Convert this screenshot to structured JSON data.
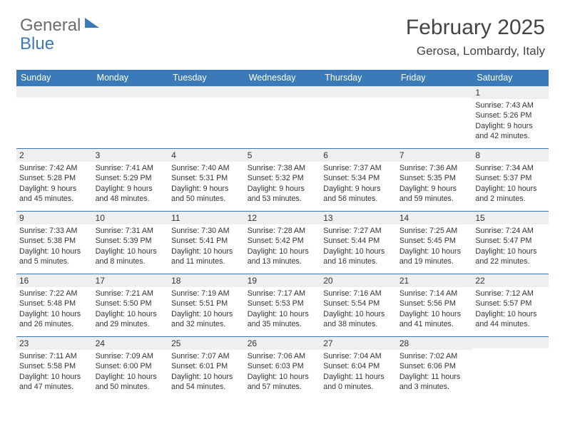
{
  "logo": {
    "part1": "General",
    "part2": "Blue"
  },
  "title": "February 2025",
  "location": "Gerosa, Lombardy, Italy",
  "colors": {
    "header_bg": "#3a7ab8",
    "header_text": "#ffffff",
    "daynum_bg": "#efefef",
    "text": "#333333",
    "border": "#3a7ab8",
    "page_bg": "#ffffff"
  },
  "dayNames": [
    "Sunday",
    "Monday",
    "Tuesday",
    "Wednesday",
    "Thursday",
    "Friday",
    "Saturday"
  ],
  "weeks": [
    [
      {
        "n": "",
        "lines": []
      },
      {
        "n": "",
        "lines": []
      },
      {
        "n": "",
        "lines": []
      },
      {
        "n": "",
        "lines": []
      },
      {
        "n": "",
        "lines": []
      },
      {
        "n": "",
        "lines": []
      },
      {
        "n": "1",
        "lines": [
          "Sunrise: 7:43 AM",
          "Sunset: 5:26 PM",
          "Daylight: 9 hours",
          "and 42 minutes."
        ]
      }
    ],
    [
      {
        "n": "2",
        "lines": [
          "Sunrise: 7:42 AM",
          "Sunset: 5:28 PM",
          "Daylight: 9 hours",
          "and 45 minutes."
        ]
      },
      {
        "n": "3",
        "lines": [
          "Sunrise: 7:41 AM",
          "Sunset: 5:29 PM",
          "Daylight: 9 hours",
          "and 48 minutes."
        ]
      },
      {
        "n": "4",
        "lines": [
          "Sunrise: 7:40 AM",
          "Sunset: 5:31 PM",
          "Daylight: 9 hours",
          "and 50 minutes."
        ]
      },
      {
        "n": "5",
        "lines": [
          "Sunrise: 7:38 AM",
          "Sunset: 5:32 PM",
          "Daylight: 9 hours",
          "and 53 minutes."
        ]
      },
      {
        "n": "6",
        "lines": [
          "Sunrise: 7:37 AM",
          "Sunset: 5:34 PM",
          "Daylight: 9 hours",
          "and 56 minutes."
        ]
      },
      {
        "n": "7",
        "lines": [
          "Sunrise: 7:36 AM",
          "Sunset: 5:35 PM",
          "Daylight: 9 hours",
          "and 59 minutes."
        ]
      },
      {
        "n": "8",
        "lines": [
          "Sunrise: 7:34 AM",
          "Sunset: 5:37 PM",
          "Daylight: 10 hours",
          "and 2 minutes."
        ]
      }
    ],
    [
      {
        "n": "9",
        "lines": [
          "Sunrise: 7:33 AM",
          "Sunset: 5:38 PM",
          "Daylight: 10 hours",
          "and 5 minutes."
        ]
      },
      {
        "n": "10",
        "lines": [
          "Sunrise: 7:31 AM",
          "Sunset: 5:39 PM",
          "Daylight: 10 hours",
          "and 8 minutes."
        ]
      },
      {
        "n": "11",
        "lines": [
          "Sunrise: 7:30 AM",
          "Sunset: 5:41 PM",
          "Daylight: 10 hours",
          "and 11 minutes."
        ]
      },
      {
        "n": "12",
        "lines": [
          "Sunrise: 7:28 AM",
          "Sunset: 5:42 PM",
          "Daylight: 10 hours",
          "and 13 minutes."
        ]
      },
      {
        "n": "13",
        "lines": [
          "Sunrise: 7:27 AM",
          "Sunset: 5:44 PM",
          "Daylight: 10 hours",
          "and 16 minutes."
        ]
      },
      {
        "n": "14",
        "lines": [
          "Sunrise: 7:25 AM",
          "Sunset: 5:45 PM",
          "Daylight: 10 hours",
          "and 19 minutes."
        ]
      },
      {
        "n": "15",
        "lines": [
          "Sunrise: 7:24 AM",
          "Sunset: 5:47 PM",
          "Daylight: 10 hours",
          "and 22 minutes."
        ]
      }
    ],
    [
      {
        "n": "16",
        "lines": [
          "Sunrise: 7:22 AM",
          "Sunset: 5:48 PM",
          "Daylight: 10 hours",
          "and 26 minutes."
        ]
      },
      {
        "n": "17",
        "lines": [
          "Sunrise: 7:21 AM",
          "Sunset: 5:50 PM",
          "Daylight: 10 hours",
          "and 29 minutes."
        ]
      },
      {
        "n": "18",
        "lines": [
          "Sunrise: 7:19 AM",
          "Sunset: 5:51 PM",
          "Daylight: 10 hours",
          "and 32 minutes."
        ]
      },
      {
        "n": "19",
        "lines": [
          "Sunrise: 7:17 AM",
          "Sunset: 5:53 PM",
          "Daylight: 10 hours",
          "and 35 minutes."
        ]
      },
      {
        "n": "20",
        "lines": [
          "Sunrise: 7:16 AM",
          "Sunset: 5:54 PM",
          "Daylight: 10 hours",
          "and 38 minutes."
        ]
      },
      {
        "n": "21",
        "lines": [
          "Sunrise: 7:14 AM",
          "Sunset: 5:56 PM",
          "Daylight: 10 hours",
          "and 41 minutes."
        ]
      },
      {
        "n": "22",
        "lines": [
          "Sunrise: 7:12 AM",
          "Sunset: 5:57 PM",
          "Daylight: 10 hours",
          "and 44 minutes."
        ]
      }
    ],
    [
      {
        "n": "23",
        "lines": [
          "Sunrise: 7:11 AM",
          "Sunset: 5:58 PM",
          "Daylight: 10 hours",
          "and 47 minutes."
        ]
      },
      {
        "n": "24",
        "lines": [
          "Sunrise: 7:09 AM",
          "Sunset: 6:00 PM",
          "Daylight: 10 hours",
          "and 50 minutes."
        ]
      },
      {
        "n": "25",
        "lines": [
          "Sunrise: 7:07 AM",
          "Sunset: 6:01 PM",
          "Daylight: 10 hours",
          "and 54 minutes."
        ]
      },
      {
        "n": "26",
        "lines": [
          "Sunrise: 7:06 AM",
          "Sunset: 6:03 PM",
          "Daylight: 10 hours",
          "and 57 minutes."
        ]
      },
      {
        "n": "27",
        "lines": [
          "Sunrise: 7:04 AM",
          "Sunset: 6:04 PM",
          "Daylight: 11 hours",
          "and 0 minutes."
        ]
      },
      {
        "n": "28",
        "lines": [
          "Sunrise: 7:02 AM",
          "Sunset: 6:06 PM",
          "Daylight: 11 hours",
          "and 3 minutes."
        ]
      },
      {
        "n": "",
        "lines": []
      }
    ]
  ]
}
